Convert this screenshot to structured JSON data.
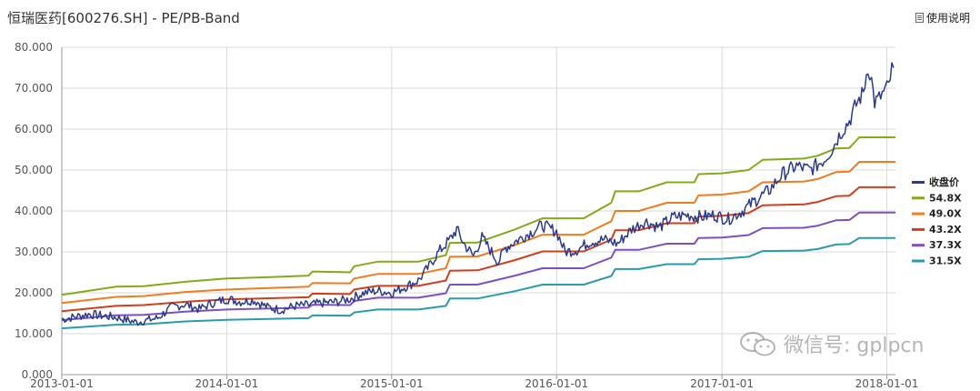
{
  "header": {
    "title": "恒瑞医药[600276.SH] - PE/PB-Band",
    "help_label": "使用说明"
  },
  "watermark": {
    "text": "微信号: gplpcn"
  },
  "chart_data": {
    "type": "line",
    "ylim": [
      0,
      80
    ],
    "yticks": [
      "0.000",
      "10.000",
      "20.000",
      "30.000",
      "40.000",
      "50.000",
      "60.000",
      "70.000",
      "80.000"
    ],
    "xticks": [
      "2013-01-01",
      "2014-01-01",
      "2015-01-01",
      "2016-01-01",
      "2017-01-01",
      "2018-01-01"
    ],
    "xrange": [
      "2013-01-01",
      "2018-01-20"
    ],
    "grid": true,
    "legend_position": "right",
    "series": [
      {
        "name": "收盘价",
        "color": "#2b3a8c",
        "points": [
          [
            "2013-01-01",
            13.5
          ],
          [
            "2013-03-01",
            14.8
          ],
          [
            "2013-05-01",
            14.0
          ],
          [
            "2013-06-15",
            12.8
          ],
          [
            "2013-08-01",
            13.8
          ],
          [
            "2013-09-01",
            16.5
          ],
          [
            "2013-10-01",
            17.2
          ],
          [
            "2013-11-01",
            16.0
          ],
          [
            "2013-12-01",
            17.5
          ],
          [
            "2014-01-01",
            18.5
          ],
          [
            "2014-02-01",
            17.8
          ],
          [
            "2014-03-01",
            18.2
          ],
          [
            "2014-04-01",
            16.5
          ],
          [
            "2014-05-01",
            15.8
          ],
          [
            "2014-06-01",
            16.8
          ],
          [
            "2014-07-01",
            17.0
          ],
          [
            "2014-08-01",
            17.5
          ],
          [
            "2014-09-01",
            17.8
          ],
          [
            "2014-10-01",
            18.5
          ],
          [
            "2014-11-01",
            20.0
          ],
          [
            "2014-12-01",
            20.5
          ],
          [
            "2015-01-01",
            20.0
          ],
          [
            "2015-02-01",
            21.5
          ],
          [
            "2015-03-01",
            23.0
          ],
          [
            "2015-03-25",
            26.5
          ],
          [
            "2015-04-15",
            30.0
          ],
          [
            "2015-05-10",
            33.0
          ],
          [
            "2015-05-25",
            35.5
          ],
          [
            "2015-06-10",
            32.0
          ],
          [
            "2015-07-01",
            29.0
          ],
          [
            "2015-07-20",
            33.5
          ],
          [
            "2015-08-10",
            30.0
          ],
          [
            "2015-08-25",
            27.5
          ],
          [
            "2015-09-10",
            31.0
          ],
          [
            "2015-10-01",
            32.5
          ],
          [
            "2015-11-01",
            34.5
          ],
          [
            "2015-12-01",
            36.5
          ],
          [
            "2016-01-01",
            35.0
          ],
          [
            "2016-01-20",
            30.0
          ],
          [
            "2016-02-15",
            30.5
          ],
          [
            "2016-03-15",
            32.5
          ],
          [
            "2016-04-15",
            33.0
          ],
          [
            "2016-05-15",
            32.0
          ],
          [
            "2016-06-15",
            35.5
          ],
          [
            "2016-07-15",
            37.5
          ],
          [
            "2016-08-15",
            36.0
          ],
          [
            "2016-09-15",
            38.5
          ],
          [
            "2016-10-15",
            39.0
          ],
          [
            "2016-11-15",
            38.5
          ],
          [
            "2016-12-15",
            39.0
          ],
          [
            "2017-01-15",
            38.0
          ],
          [
            "2017-02-15",
            40.0
          ],
          [
            "2017-03-15",
            42.5
          ],
          [
            "2017-04-15",
            45.0
          ],
          [
            "2017-05-15",
            49.0
          ],
          [
            "2017-06-15",
            51.0
          ],
          [
            "2017-07-15",
            50.0
          ],
          [
            "2017-08-15",
            52.5
          ],
          [
            "2017-09-01",
            55.0
          ],
          [
            "2017-09-20",
            59.0
          ],
          [
            "2017-10-10",
            62.0
          ],
          [
            "2017-10-25",
            66.0
          ],
          [
            "2017-11-10",
            69.0
          ],
          [
            "2017-11-20",
            75.5
          ],
          [
            "2017-11-28",
            72.0
          ],
          [
            "2017-12-05",
            66.5
          ],
          [
            "2017-12-15",
            67.5
          ],
          [
            "2017-12-25",
            69.0
          ],
          [
            "2018-01-05",
            70.5
          ],
          [
            "2018-01-12",
            74.5
          ],
          [
            "2018-01-16",
            75.0
          ]
        ]
      },
      {
        "name": "54.8X",
        "color": "#86a91a",
        "points": [
          [
            "2013-01-01",
            19.5
          ],
          [
            "2013-05-01",
            21.5
          ],
          [
            "2013-07-01",
            21.6
          ],
          [
            "2013-10-01",
            22.7
          ],
          [
            "2014-01-01",
            23.5
          ],
          [
            "2014-04-01",
            23.8
          ],
          [
            "2014-07-01",
            24.2
          ],
          [
            "2014-07-10",
            25.2
          ],
          [
            "2014-10-01",
            25.0
          ],
          [
            "2014-10-10",
            26.5
          ],
          [
            "2014-12-01",
            27.6
          ],
          [
            "2015-03-01",
            27.6
          ],
          [
            "2015-05-01",
            29.2
          ],
          [
            "2015-05-10",
            32.2
          ],
          [
            "2015-07-10",
            32.3
          ],
          [
            "2015-10-01",
            35.5
          ],
          [
            "2015-12-01",
            38.2
          ],
          [
            "2016-03-01",
            38.2
          ],
          [
            "2016-05-01",
            42.0
          ],
          [
            "2016-05-10",
            44.8
          ],
          [
            "2016-07-01",
            44.8
          ],
          [
            "2016-09-01",
            47.0
          ],
          [
            "2016-11-01",
            47.0
          ],
          [
            "2016-11-10",
            49.0
          ],
          [
            "2017-01-01",
            49.2
          ],
          [
            "2017-03-01",
            50.0
          ],
          [
            "2017-04-01",
            52.5
          ],
          [
            "2017-07-01",
            52.8
          ],
          [
            "2017-08-01",
            53.5
          ],
          [
            "2017-09-10",
            55.3
          ],
          [
            "2017-10-10",
            55.4
          ],
          [
            "2017-11-01",
            58.0
          ],
          [
            "2018-01-20",
            58.0
          ]
        ]
      },
      {
        "name": "49.0X",
        "color": "#f07b21",
        "points": [
          [
            "2013-01-01",
            17.5
          ],
          [
            "2013-05-01",
            19.0
          ],
          [
            "2013-07-01",
            19.2
          ],
          [
            "2013-10-01",
            20.2
          ],
          [
            "2014-01-01",
            20.8
          ],
          [
            "2014-07-01",
            21.5
          ],
          [
            "2014-07-10",
            22.4
          ],
          [
            "2014-10-01",
            22.3
          ],
          [
            "2014-10-10",
            23.5
          ],
          [
            "2014-12-01",
            24.6
          ],
          [
            "2015-03-01",
            24.6
          ],
          [
            "2015-05-01",
            26.0
          ],
          [
            "2015-05-10",
            28.8
          ],
          [
            "2015-07-10",
            28.9
          ],
          [
            "2015-10-01",
            31.7
          ],
          [
            "2015-12-01",
            34.2
          ],
          [
            "2016-03-01",
            34.2
          ],
          [
            "2016-05-01",
            37.5
          ],
          [
            "2016-05-10",
            40.0
          ],
          [
            "2016-07-01",
            40.0
          ],
          [
            "2016-09-01",
            42.0
          ],
          [
            "2016-11-01",
            42.0
          ],
          [
            "2016-11-10",
            43.8
          ],
          [
            "2017-01-01",
            44.0
          ],
          [
            "2017-03-01",
            44.8
          ],
          [
            "2017-04-01",
            47.0
          ],
          [
            "2017-07-01",
            47.2
          ],
          [
            "2017-08-01",
            47.8
          ],
          [
            "2017-09-10",
            49.5
          ],
          [
            "2017-10-10",
            49.6
          ],
          [
            "2017-11-01",
            52.0
          ],
          [
            "2018-01-20",
            52.0
          ]
        ]
      },
      {
        "name": "43.2X",
        "color": "#d03e1e",
        "points": [
          [
            "2013-01-01",
            15.5
          ],
          [
            "2013-05-01",
            16.8
          ],
          [
            "2013-07-01",
            17.0
          ],
          [
            "2013-10-01",
            17.8
          ],
          [
            "2014-01-01",
            18.4
          ],
          [
            "2014-07-01",
            18.9
          ],
          [
            "2014-07-10",
            19.8
          ],
          [
            "2014-10-01",
            19.7
          ],
          [
            "2014-10-10",
            20.8
          ],
          [
            "2014-12-01",
            21.7
          ],
          [
            "2015-03-01",
            21.7
          ],
          [
            "2015-05-01",
            23.0
          ],
          [
            "2015-05-10",
            25.4
          ],
          [
            "2015-07-10",
            25.5
          ],
          [
            "2015-10-01",
            28.0
          ],
          [
            "2015-12-01",
            30.1
          ],
          [
            "2016-03-01",
            30.1
          ],
          [
            "2016-05-01",
            33.0
          ],
          [
            "2016-05-10",
            35.3
          ],
          [
            "2016-07-01",
            35.3
          ],
          [
            "2016-09-01",
            37.0
          ],
          [
            "2016-11-01",
            37.0
          ],
          [
            "2016-11-10",
            38.6
          ],
          [
            "2017-01-01",
            38.8
          ],
          [
            "2017-03-01",
            39.5
          ],
          [
            "2017-04-01",
            41.4
          ],
          [
            "2017-07-01",
            41.6
          ],
          [
            "2017-08-01",
            42.2
          ],
          [
            "2017-09-10",
            43.6
          ],
          [
            "2017-10-10",
            43.7
          ],
          [
            "2017-11-01",
            45.8
          ],
          [
            "2018-01-20",
            45.8
          ]
        ]
      },
      {
        "name": "37.3X",
        "color": "#7d4fc0",
        "points": [
          [
            "2013-01-01",
            13.3
          ],
          [
            "2013-05-01",
            14.5
          ],
          [
            "2013-07-01",
            14.6
          ],
          [
            "2013-10-01",
            15.4
          ],
          [
            "2014-01-01",
            15.9
          ],
          [
            "2014-07-01",
            16.4
          ],
          [
            "2014-07-10",
            17.1
          ],
          [
            "2014-10-01",
            17.0
          ],
          [
            "2014-10-10",
            18.0
          ],
          [
            "2014-12-01",
            18.8
          ],
          [
            "2015-03-01",
            18.8
          ],
          [
            "2015-05-01",
            19.9
          ],
          [
            "2015-05-10",
            22.0
          ],
          [
            "2015-07-10",
            22.0
          ],
          [
            "2015-10-01",
            24.2
          ],
          [
            "2015-12-01",
            26.0
          ],
          [
            "2016-03-01",
            26.0
          ],
          [
            "2016-05-01",
            28.6
          ],
          [
            "2016-05-10",
            30.5
          ],
          [
            "2016-07-01",
            30.5
          ],
          [
            "2016-09-01",
            32.0
          ],
          [
            "2016-11-01",
            32.0
          ],
          [
            "2016-11-10",
            33.4
          ],
          [
            "2017-01-01",
            33.5
          ],
          [
            "2017-03-01",
            34.1
          ],
          [
            "2017-04-01",
            35.8
          ],
          [
            "2017-07-01",
            35.9
          ],
          [
            "2017-08-01",
            36.4
          ],
          [
            "2017-09-10",
            37.7
          ],
          [
            "2017-10-10",
            37.8
          ],
          [
            "2017-11-01",
            39.6
          ],
          [
            "2018-01-20",
            39.6
          ]
        ]
      },
      {
        "name": "31.5X",
        "color": "#2a9bab",
        "points": [
          [
            "2013-01-01",
            11.3
          ],
          [
            "2013-05-01",
            12.2
          ],
          [
            "2013-07-01",
            12.3
          ],
          [
            "2013-10-01",
            13.0
          ],
          [
            "2014-01-01",
            13.4
          ],
          [
            "2014-07-01",
            13.8
          ],
          [
            "2014-07-10",
            14.5
          ],
          [
            "2014-10-01",
            14.4
          ],
          [
            "2014-10-10",
            15.2
          ],
          [
            "2014-12-01",
            15.9
          ],
          [
            "2015-03-01",
            15.9
          ],
          [
            "2015-05-01",
            16.8
          ],
          [
            "2015-05-10",
            18.6
          ],
          [
            "2015-07-10",
            18.6
          ],
          [
            "2015-10-01",
            20.4
          ],
          [
            "2015-12-01",
            22.0
          ],
          [
            "2016-03-01",
            22.0
          ],
          [
            "2016-05-01",
            24.1
          ],
          [
            "2016-05-10",
            25.8
          ],
          [
            "2016-07-01",
            25.8
          ],
          [
            "2016-09-01",
            27.0
          ],
          [
            "2016-11-01",
            27.0
          ],
          [
            "2016-11-10",
            28.2
          ],
          [
            "2017-01-01",
            28.3
          ],
          [
            "2017-03-01",
            28.8
          ],
          [
            "2017-04-01",
            30.2
          ],
          [
            "2017-07-01",
            30.3
          ],
          [
            "2017-08-01",
            30.7
          ],
          [
            "2017-09-10",
            31.8
          ],
          [
            "2017-10-10",
            31.9
          ],
          [
            "2017-11-01",
            33.4
          ],
          [
            "2018-01-20",
            33.4
          ]
        ]
      }
    ]
  }
}
